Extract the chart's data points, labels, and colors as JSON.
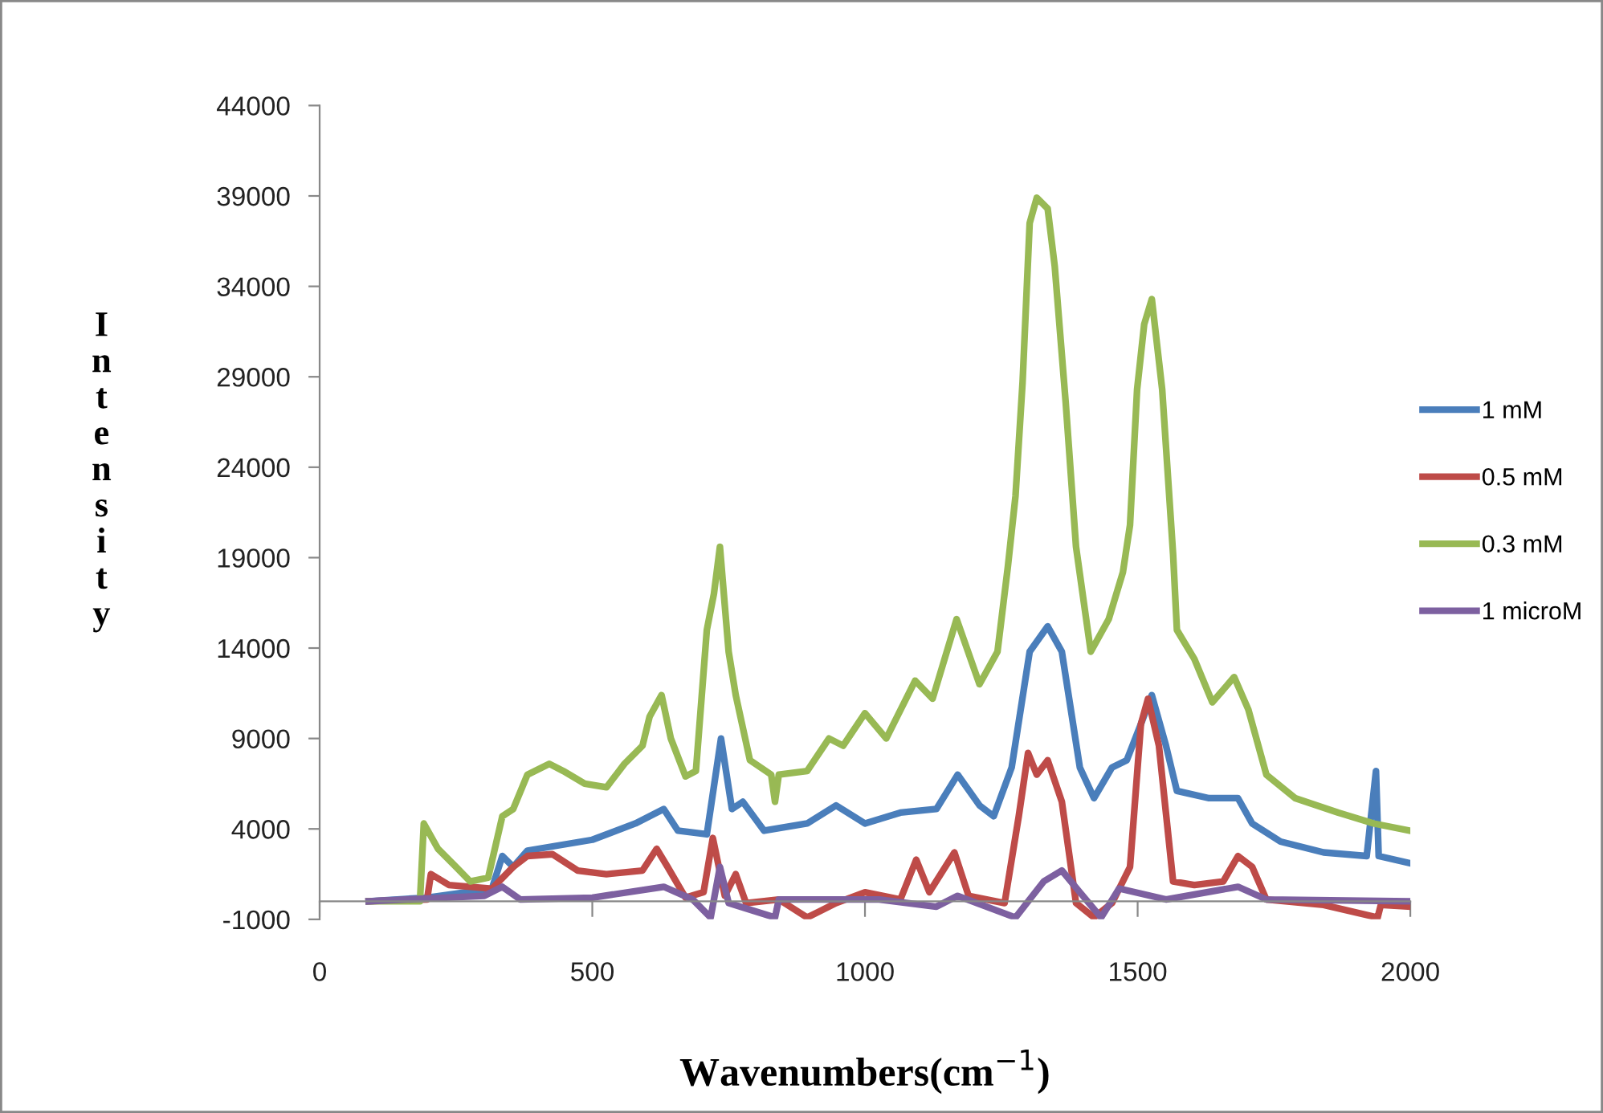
{
  "chart_data": {
    "type": "line",
    "xlabel": "Wavenumbers(cm$^{−1}$)",
    "ylabel": "Intensity",
    "xlim": [
      0,
      2000
    ],
    "xticks": [
      0,
      500,
      1000,
      1500,
      2000
    ],
    "ylim": [
      -1000,
      44000
    ],
    "yticks": [
      -1000,
      4000,
      9000,
      14000,
      19000,
      24000,
      29000,
      34000,
      39000,
      44000
    ],
    "grid": false,
    "legend": "right",
    "marker": "none",
    "line_style": "solid",
    "series": [
      {
        "name": "1 mM",
        "color": "#4a7ebb",
        "x": [
          90,
          197,
          316,
          335,
          355,
          381,
          500,
          579,
          631,
          657,
          710,
          736,
          756,
          776,
          815,
          894,
          947,
          1000,
          1065,
          1131,
          1170,
          1210,
          1236,
          1269,
          1302,
          1335,
          1361,
          1394,
          1420,
          1453,
          1480,
          1506,
          1526,
          1552,
          1572,
          1631,
          1684,
          1710,
          1762,
          1841,
          1920,
          1937,
          1942,
          2000
        ],
        "values": [
          0,
          200,
          700,
          2500,
          1900,
          2800,
          3400,
          4300,
          5100,
          3900,
          3700,
          9000,
          5100,
          5500,
          3900,
          4300,
          5300,
          4300,
          4900,
          5100,
          7000,
          5300,
          4700,
          7400,
          13800,
          15200,
          13800,
          7400,
          5700,
          7400,
          7800,
          9800,
          11400,
          8600,
          6100,
          5700,
          5700,
          4300,
          3300,
          2700,
          2500,
          7200,
          2500,
          2100
        ]
      },
      {
        "name": "0.5 mM",
        "color": "#be4b48",
        "x": [
          90,
          197,
          204,
          237,
          316,
          355,
          381,
          427,
          473,
          526,
          592,
          618,
          638,
          671,
          704,
          721,
          743,
          763,
          782,
          842,
          894,
          947,
          1000,
          1065,
          1094,
          1118,
          1164,
          1190,
          1256,
          1282,
          1299,
          1315,
          1335,
          1361,
          1387,
          1420,
          1453,
          1486,
          1506,
          1519,
          1539,
          1565,
          1604,
          1657,
          1684,
          1710,
          1736,
          1841,
          1940,
          1946,
          2000
        ],
        "values": [
          0,
          100,
          1500,
          900,
          700,
          1900,
          2500,
          2600,
          1700,
          1500,
          1700,
          2900,
          1900,
          200,
          500,
          3500,
          300,
          1500,
          -100,
          100,
          -900,
          -100,
          500,
          100,
          2300,
          500,
          2700,
          300,
          -100,
          4700,
          8200,
          7000,
          7800,
          5500,
          -100,
          -900,
          -100,
          1900,
          9800,
          11200,
          8600,
          1100,
          900,
          1100,
          2500,
          1900,
          100,
          -200,
          -900,
          -200,
          -300
        ]
      },
      {
        "name": "0.3 mM",
        "color": "#98b954",
        "x": [
          90,
          184,
          191,
          217,
          250,
          276,
          309,
          335,
          355,
          381,
          421,
          447,
          486,
          526,
          559,
          592,
          605,
          627,
          644,
          671,
          690,
          710,
          723,
          734,
          750,
          763,
          789,
          828,
          835,
          842,
          894,
          934,
          960,
          1000,
          1039,
          1092,
          1124,
          1168,
          1210,
          1243,
          1262,
          1276,
          1289,
          1302,
          1315,
          1335,
          1348,
          1368,
          1387,
          1414,
          1447,
          1473,
          1486,
          1499,
          1512,
          1526,
          1545,
          1565,
          1572,
          1604,
          1637,
          1677,
          1703,
          1736,
          1789,
          1868,
          1933,
          2000
        ],
        "values": [
          0,
          0,
          4300,
          2900,
          1900,
          1100,
          1300,
          4700,
          5100,
          7000,
          7600,
          7200,
          6500,
          6300,
          7600,
          8600,
          10200,
          11400,
          9000,
          6900,
          7200,
          15000,
          17000,
          19600,
          13800,
          11400,
          7800,
          7000,
          5500,
          7000,
          7200,
          9000,
          8600,
          10400,
          9000,
          12200,
          11200,
          15600,
          12000,
          13800,
          18500,
          22400,
          28700,
          37500,
          38900,
          38300,
          35100,
          27600,
          19600,
          13800,
          15600,
          18200,
          20800,
          28300,
          31900,
          33300,
          28300,
          19200,
          15000,
          13400,
          11000,
          12400,
          10600,
          7000,
          5700,
          4900,
          4300,
          3900
        ]
      },
      {
        "name": "1 microM",
        "color": "#7d60a0",
        "x": [
          90,
          302,
          335,
          368,
          500,
          631,
          684,
          717,
          734,
          750,
          835,
          842,
          1026,
          1131,
          1170,
          1276,
          1328,
          1361,
          1394,
          1433,
          1466,
          1552,
          1684,
          1736,
          2000
        ],
        "values": [
          0,
          300,
          800,
          100,
          200,
          800,
          100,
          -900,
          1900,
          -100,
          -900,
          100,
          100,
          -300,
          300,
          -900,
          1100,
          1700,
          500,
          -900,
          700,
          100,
          800,
          100,
          0
        ]
      }
    ]
  }
}
